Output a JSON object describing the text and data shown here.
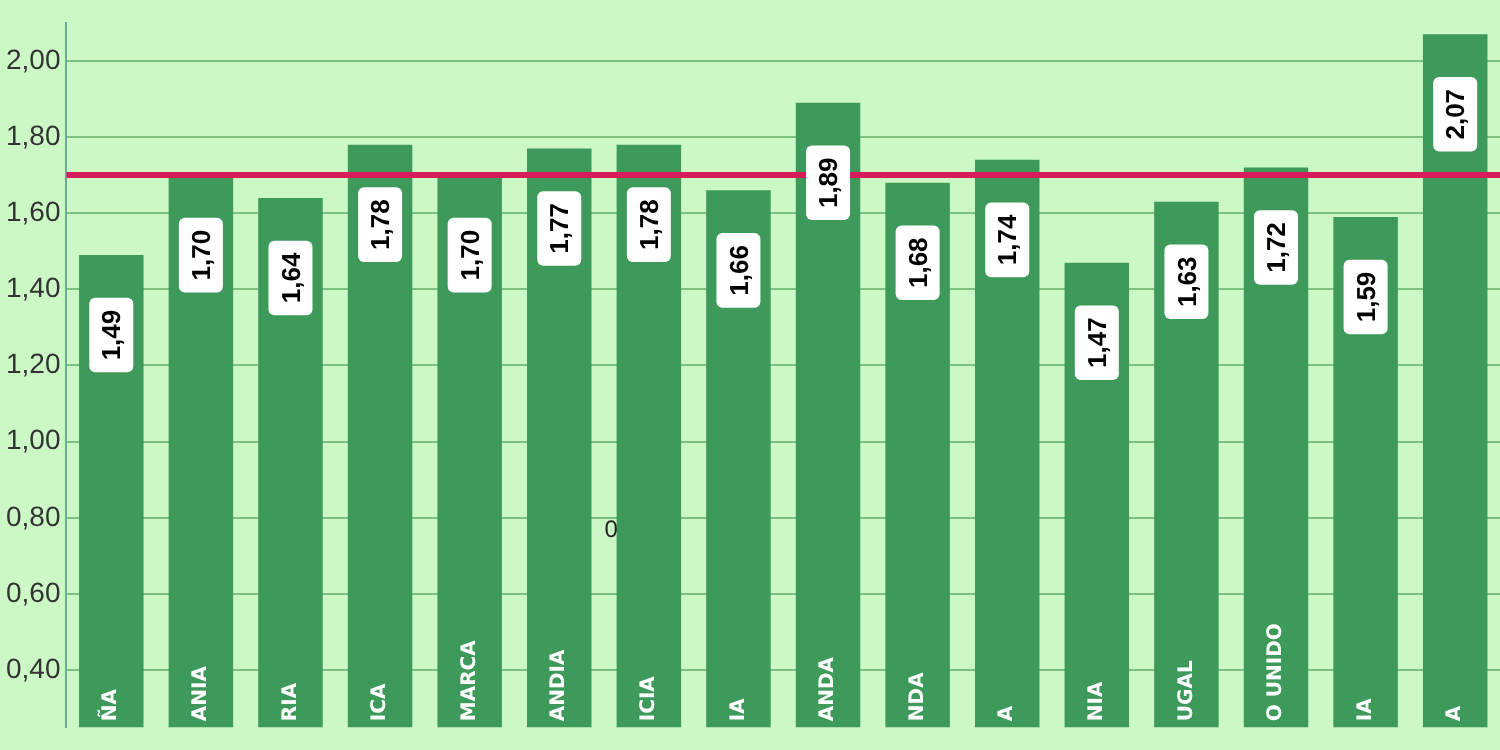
{
  "chart_data": {
    "type": "bar",
    "categories": [
      "ÑA",
      "ANIA",
      "RIA",
      "ICA",
      "MARCA",
      "ANDIA",
      "ICIA",
      "IA",
      "ANDA",
      "NDA",
      "A",
      "NIA",
      "UGAL",
      "O UNIDO",
      "IA",
      "A"
    ],
    "values": [
      1.49,
      1.7,
      1.64,
      1.78,
      1.7,
      1.77,
      1.78,
      1.66,
      1.89,
      1.68,
      1.74,
      1.47,
      1.63,
      1.72,
      1.59,
      2.07
    ],
    "value_labels": [
      "1,49",
      "1,70",
      "1,64",
      "1,78",
      "1,70",
      "1,77",
      "1,78",
      "1,66",
      "1,89",
      "1,68",
      "1,74",
      "1,47",
      "1,63",
      "1,72",
      "1,59",
      "2,07"
    ],
    "color": "#3e9a5b",
    "ylim": [
      0.25,
      2.1
    ],
    "yticks": [
      {
        "value": 0.4,
        "label": "0,40"
      },
      {
        "value": 0.6,
        "label": "0,60"
      },
      {
        "value": 0.8,
        "label": "0,80"
      },
      {
        "value": 1.0,
        "label": "1,00"
      },
      {
        "value": 1.2,
        "label": "1,20"
      },
      {
        "value": 1.4,
        "label": "1,40"
      },
      {
        "value": 1.6,
        "label": "1,60"
      },
      {
        "value": 1.8,
        "label": "1,80"
      },
      {
        "value": 2.0,
        "label": "2,00"
      }
    ],
    "ref_lines": [
      {
        "axis": "y",
        "value": 1.7,
        "color": "#d81b5a"
      }
    ],
    "annotations": [
      "0"
    ],
    "grid": "y",
    "legend": false
  }
}
